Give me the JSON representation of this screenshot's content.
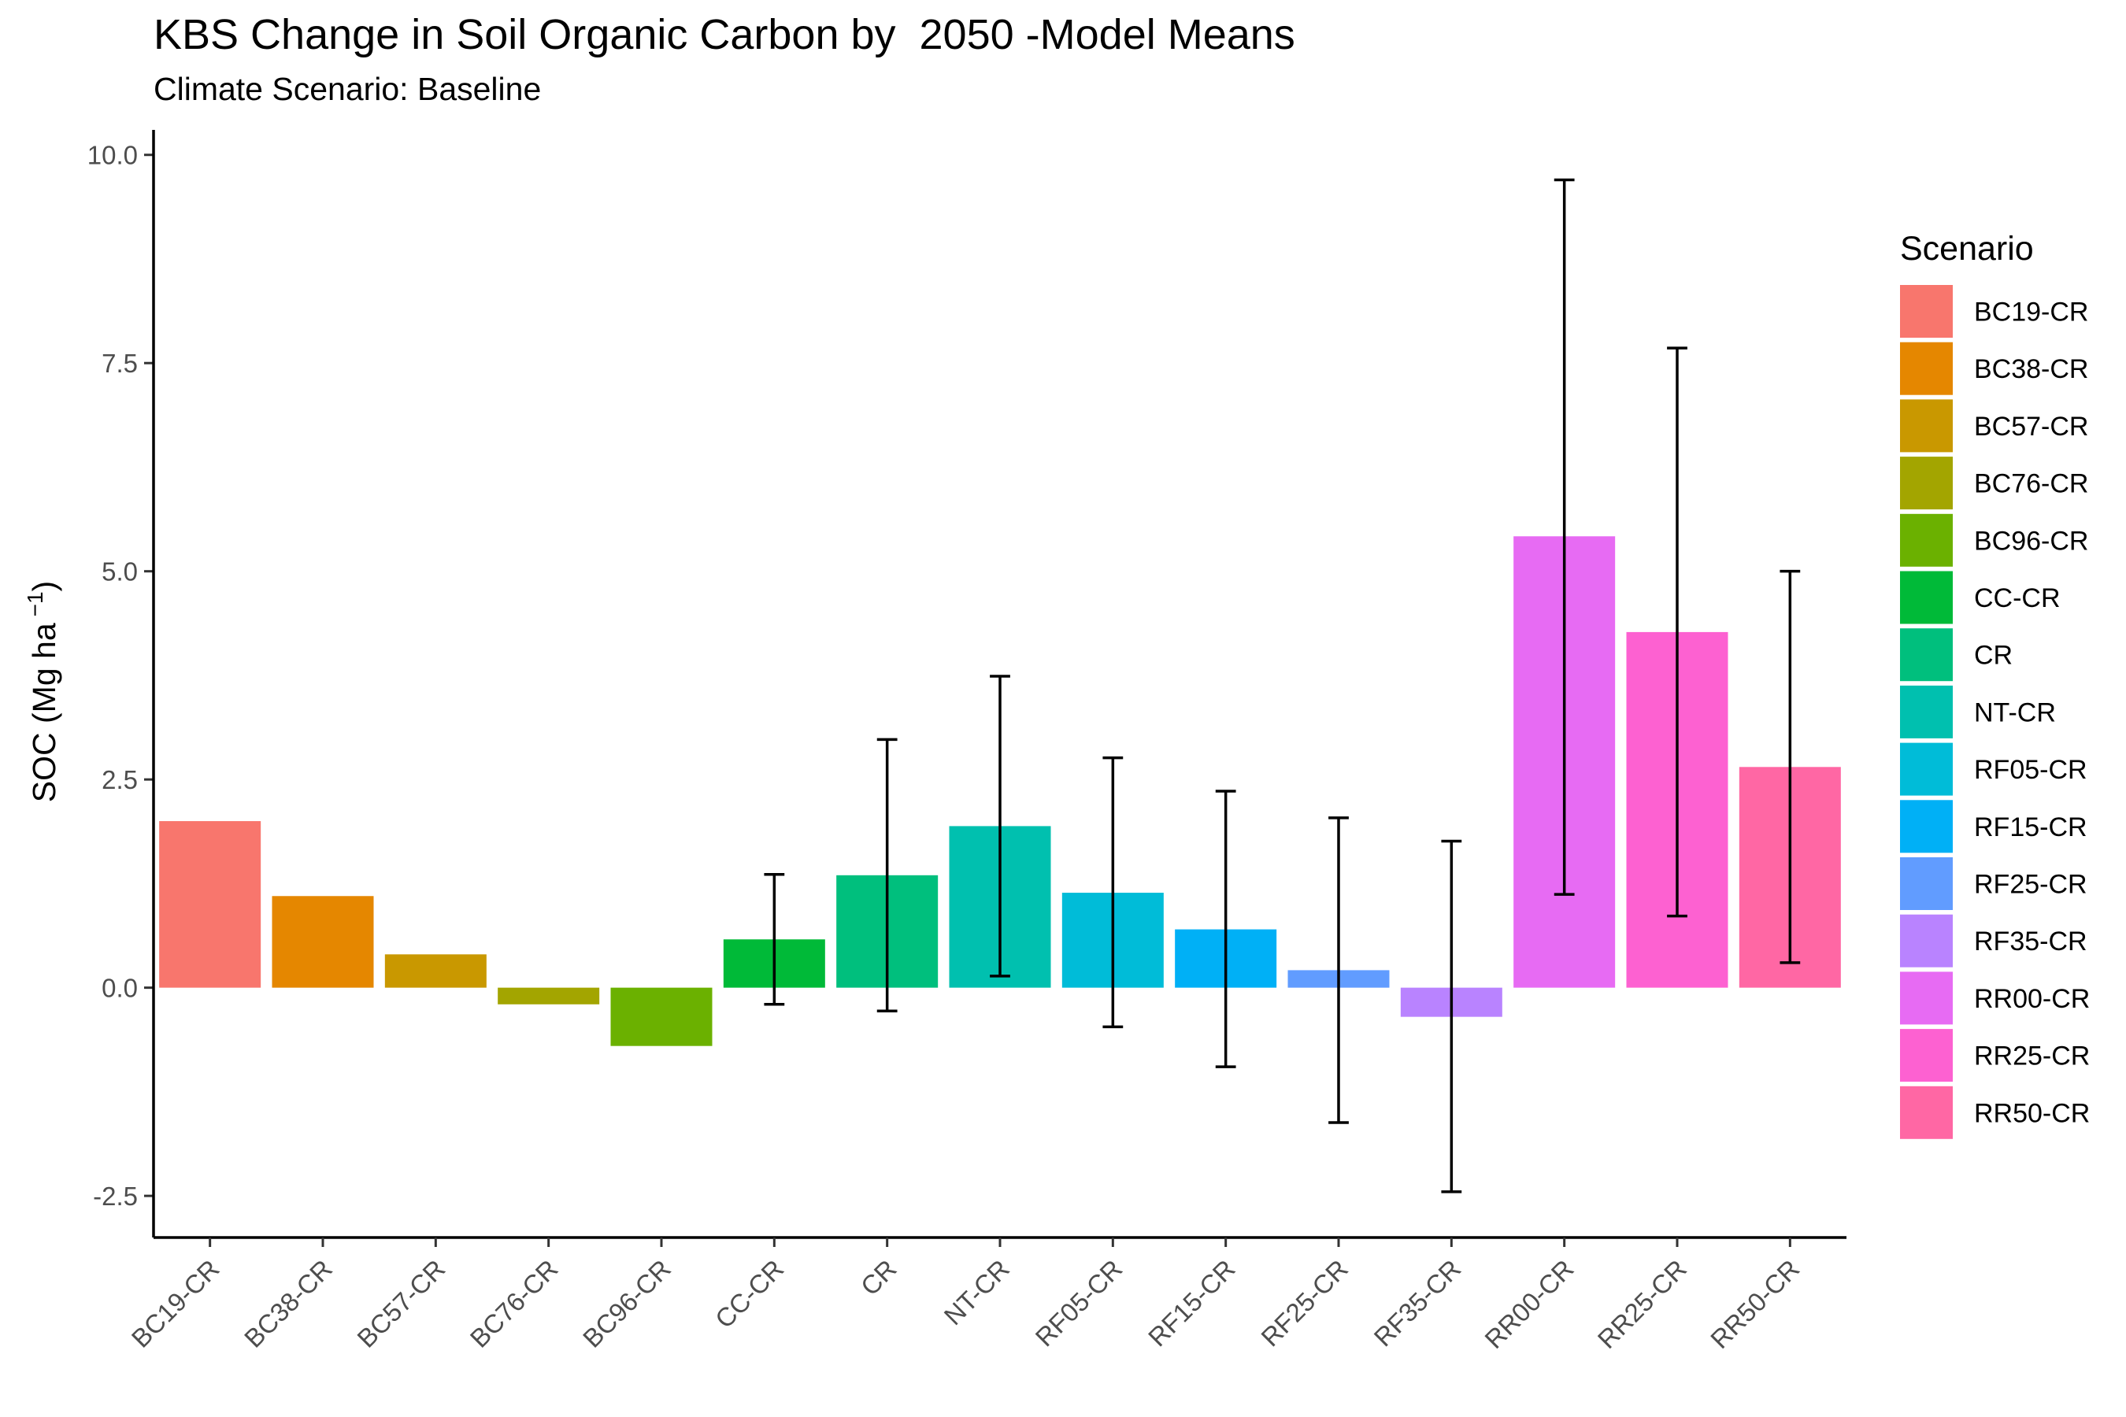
{
  "title": "KBS Change in Soil Organic Carbon by  2050 -Model Means",
  "subtitle": "Climate Scenario: Baseline",
  "chart_data": {
    "type": "bar",
    "title": "KBS Change in Soil Organic Carbon by  2050 -Model Means",
    "subtitle": "Climate Scenario: Baseline",
    "ylabel": {
      "main": "SOC (Mg ha",
      "superscript": "−1",
      "close": ")"
    },
    "xlabel": "",
    "ylim": [
      -3.0,
      10.3
    ],
    "yticks": [
      -2.5,
      0.0,
      2.5,
      5.0,
      7.5,
      10.0
    ],
    "ytick_labels": [
      "-2.5",
      "0.0",
      "2.5",
      "5.0",
      "7.5",
      "10.0"
    ],
    "grid": false,
    "legend": {
      "title": "Scenario",
      "placement": "right"
    },
    "categories": [
      "BC19-CR",
      "BC38-CR",
      "BC57-CR",
      "BC76-CR",
      "BC96-CR",
      "CC-CR",
      "CR",
      "NT-CR",
      "RF05-CR",
      "RF15-CR",
      "RF25-CR",
      "RF35-CR",
      "RR00-CR",
      "RR25-CR",
      "RR50-CR"
    ],
    "values": [
      2.0,
      1.1,
      0.4,
      -0.2,
      -0.7,
      0.58,
      1.35,
      1.94,
      1.14,
      0.7,
      0.21,
      -0.35,
      5.42,
      4.27,
      2.65
    ],
    "error_low": [
      null,
      null,
      null,
      null,
      null,
      -0.2,
      -0.28,
      0.14,
      -0.47,
      -0.95,
      -1.62,
      -2.45,
      1.12,
      0.86,
      0.3
    ],
    "error_high": [
      null,
      null,
      null,
      null,
      null,
      1.36,
      2.98,
      3.74,
      2.76,
      2.36,
      2.04,
      1.76,
      9.7,
      7.68,
      5.0
    ],
    "colors": [
      "#F8766D",
      "#E58700",
      "#C99800",
      "#A3A500",
      "#6BB100",
      "#00BA38",
      "#00BF7D",
      "#00C0AF",
      "#00BCD8",
      "#00B0F6",
      "#619CFF",
      "#B983FF",
      "#E76BF3",
      "#FD61D1",
      "#FF67A4"
    ]
  }
}
